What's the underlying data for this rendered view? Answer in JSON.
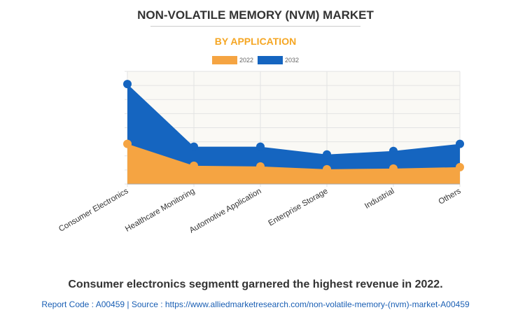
{
  "title": "NON-VOLATILE MEMORY (NVM) MARKET",
  "subtitle": "BY APPLICATION",
  "caption": "Consumer electronics segmentt garnered the highest revenue in 2022.",
  "footer": "Report Code : A00459  |  Source : https://www.alliedmarketresearch.com/non-volatile-memory-(nvm)-market-A00459",
  "chart_data": {
    "type": "area",
    "categories": [
      "Consumer Electronics",
      "Healthcare Monitoring",
      "Automotive Application",
      "Enterprise Storage",
      "Industrial",
      "Others"
    ],
    "series": [
      {
        "name": "2032",
        "color": "#1565c0",
        "values": [
          7.1,
          2.65,
          2.65,
          2.1,
          2.35,
          2.85
        ]
      },
      {
        "name": "2022",
        "color": "#f5a442",
        "values": [
          2.85,
          1.3,
          1.25,
          1.05,
          1.1,
          1.2
        ]
      }
    ],
    "ylim": [
      0,
      8
    ],
    "grid": true,
    "legend": "top",
    "y_tick_labels_shown": false
  }
}
